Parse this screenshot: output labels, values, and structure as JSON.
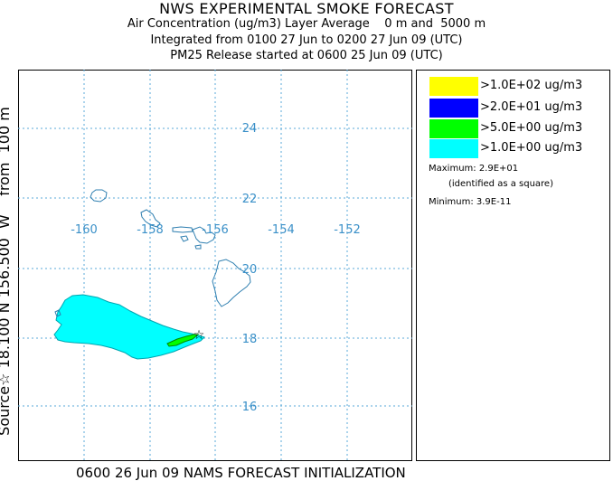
{
  "header": {
    "title": "NWS EXPERIMENTAL SMOKE FORECAST",
    "line2": "Air Concentration (ug/m3) Layer Average    0 m and  5000 m",
    "line3": "Integrated from 0100 27 Jun to 0200 27 Jun 09 (UTC)",
    "line4": "PM25 Release started at 0600 25 Jun 09 (UTC)"
  },
  "side_label": "Source☆ 18.100 N 156.500  W    from  100 m",
  "footer": "0600 26 Jun 09 NAMS FORECAST INITIALIZATION",
  "map": {
    "grid_color": "#5aa8d8",
    "coast_color": "#2f7fb0",
    "longitude_labels": [
      "-160",
      "-158",
      "-156",
      "-154",
      "-152"
    ],
    "latitude_labels": [
      "24",
      "22",
      "20",
      "18",
      "16"
    ],
    "plume_colors": {
      "cyan": "#00ffff",
      "green": "#00ff00"
    }
  },
  "legend": {
    "items": [
      {
        "label": ">1.0E+02 ug/m3",
        "color": "#ffff00"
      },
      {
        "label": ">2.0E+01 ug/m3",
        "color": "#0000ff"
      },
      {
        "label": ">5.0E+00 ug/m3",
        "color": "#00ff00"
      },
      {
        "label": ">1.0E+00 ug/m3",
        "color": "#00ffff"
      }
    ],
    "maximum": "Maximum: 2.9E+01",
    "maximum_note": "(identified as a square)",
    "minimum": "Minimum: 3.9E-11"
  }
}
